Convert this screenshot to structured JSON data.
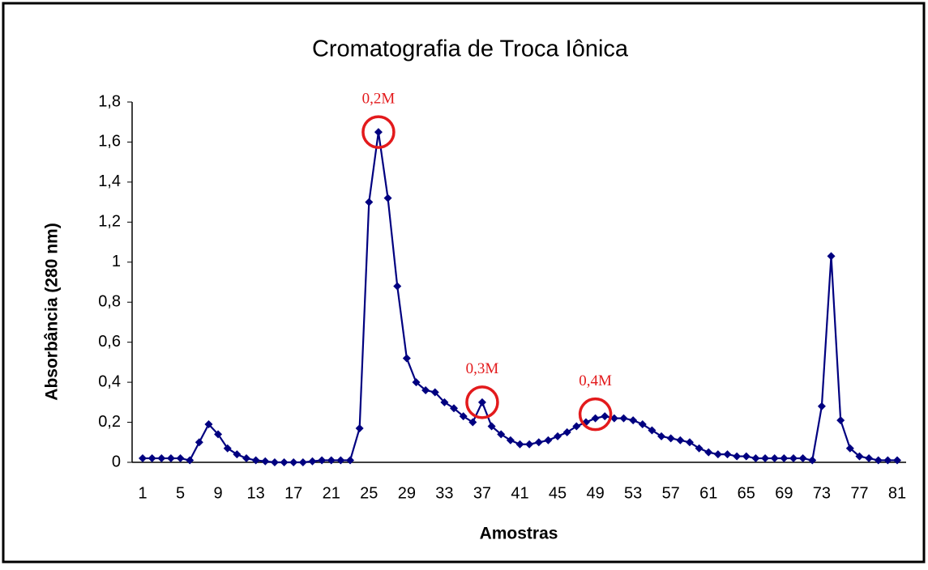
{
  "chart_data": {
    "type": "line",
    "title": "Cromatografia de Troca Iônica",
    "xlabel": "Amostras",
    "ylabel": "Absorbância (280 nm)",
    "categories": [
      1,
      null,
      null,
      null,
      5,
      null,
      null,
      null,
      9,
      null,
      null,
      null,
      13,
      null,
      null,
      null,
      17,
      null,
      null,
      null,
      21,
      null,
      null,
      null,
      25,
      null,
      null,
      null,
      29,
      null,
      null,
      null,
      33,
      null,
      null,
      null,
      37,
      null,
      null,
      null,
      41,
      null,
      null,
      null,
      45,
      null,
      null,
      null,
      49,
      null,
      null,
      null,
      53,
      null,
      null,
      null,
      57,
      null,
      null,
      null,
      61,
      null,
      null,
      null,
      65,
      null,
      null,
      null,
      69,
      null,
      null,
      null,
      73,
      null,
      null,
      null,
      77,
      null,
      null,
      null,
      81
    ],
    "series": [
      {
        "name": "Absorbância",
        "color": "#000080",
        "values": [
          0.02,
          0.02,
          0.02,
          0.02,
          0.02,
          0.01,
          0.1,
          0.19,
          0.14,
          0.07,
          0.04,
          0.02,
          0.01,
          0.005,
          0,
          0,
          0,
          0,
          0.005,
          0.01,
          0.01,
          0.01,
          0.01,
          0.17,
          1.3,
          1.65,
          1.32,
          0.88,
          0.52,
          0.4,
          0.36,
          0.35,
          0.3,
          0.27,
          0.23,
          0.2,
          0.3,
          0.18,
          0.14,
          0.11,
          0.09,
          0.09,
          0.1,
          0.11,
          0.13,
          0.15,
          0.18,
          0.2,
          0.22,
          0.23,
          0.22,
          0.22,
          0.21,
          0.19,
          0.16,
          0.13,
          0.12,
          0.11,
          0.1,
          0.07,
          0.05,
          0.04,
          0.04,
          0.03,
          0.03,
          0.02,
          0.02,
          0.02,
          0.02,
          0.02,
          0.02,
          0.01,
          0.28,
          1.03,
          0.21,
          0.07,
          0.03,
          0.02,
          0.01,
          0.01,
          0.01
        ]
      }
    ],
    "ylim": [
      0,
      1.8
    ],
    "yticks": [
      0,
      {
        "value": 0.2,
        "label": "0,2"
      },
      {
        "value": 0.4,
        "label": "0,4"
      },
      {
        "value": 0.6,
        "label": "0,6"
      },
      {
        "value": 0.8,
        "label": "0,8"
      },
      1,
      {
        "value": 1.2,
        "label": "1,2"
      },
      {
        "value": 1.4,
        "label": "1,4"
      },
      {
        "value": 1.6,
        "label": "1,6"
      },
      {
        "value": 1.8,
        "label": "1,8"
      }
    ],
    "annotations": [
      {
        "text": "0,2M",
        "x": 26,
        "y": 1.65
      },
      {
        "text": "0,3M",
        "x": 37,
        "y": 0.3
      },
      {
        "text": "0,4M",
        "x": 49,
        "y": 0.24
      }
    ],
    "annotation_color": "#e31a1c",
    "grid": false
  }
}
